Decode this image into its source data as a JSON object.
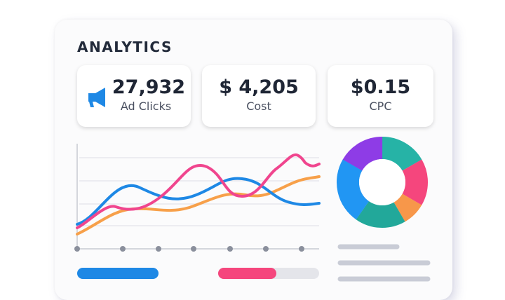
{
  "header": {
    "title": "ANALYTICS"
  },
  "stats": [
    {
      "value": "27,932",
      "label": "Ad Clicks"
    },
    {
      "value": "$ 4,205",
      "label": "Cost"
    },
    {
      "value": "$0.15",
      "label": "CPC"
    }
  ]
}
